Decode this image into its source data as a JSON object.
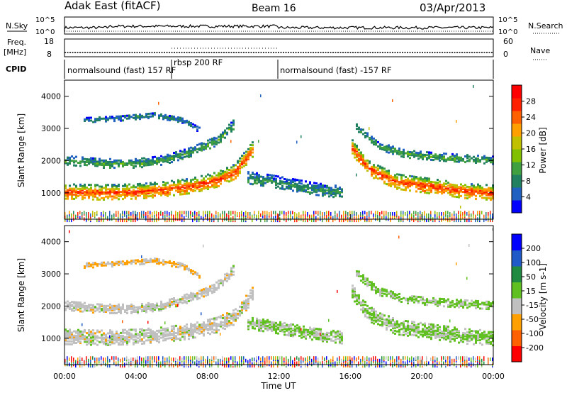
{
  "header": {
    "site_title": "Adak East (fitACF)",
    "beam": "Beam 16",
    "date": "03/Apr/2013"
  },
  "sky_panel": {
    "left_label": "N.Sky",
    "right_label": "N.Search",
    "left_ticks": [
      "10^5",
      "10^0"
    ],
    "right_ticks": [
      "10^5",
      "10^0"
    ]
  },
  "freq_panel": {
    "left_label": "Freq.",
    "left_unit": "[MHz]",
    "right_label": "Nave",
    "left_ticks": [
      "18",
      "8"
    ],
    "right_ticks": [
      "60",
      "0"
    ]
  },
  "cpid": {
    "label": "CPID",
    "segments": [
      {
        "name": "normalsound (fast) 157 RF",
        "start_hour": 0,
        "end_hour": 6
      },
      {
        "name": "rbsp 200 RF",
        "start_hour": 6,
        "end_hour": 12
      },
      {
        "name": "normalsound (fast) -157 RF",
        "start_hour": 12,
        "end_hour": 24
      }
    ]
  },
  "power_panel": {
    "ylabel": "Slant Range [km]",
    "yticks": [
      "4000",
      "3000",
      "2000",
      "1000"
    ],
    "colorbar_label": "Power [dB]",
    "colorbar_ticks": [
      "28",
      "24",
      "20",
      "16",
      "12",
      "8",
      "4"
    ],
    "colors": [
      "#0000ff",
      "#2060c0",
      "#208060",
      "#40a040",
      "#80c000",
      "#c0c000",
      "#ffa000",
      "#ff6000",
      "#ff2000",
      "#ff0000"
    ]
  },
  "velocity_panel": {
    "ylabel": "Slant Range [km]",
    "yticks": [
      "4000",
      "3000",
      "2000",
      "1000"
    ],
    "colorbar_label": "Velocity [m s-1]",
    "colorbar_ticks": [
      "200",
      "100",
      "50",
      "15",
      "-15",
      "-50",
      "-100",
      "-200"
    ],
    "colors": [
      "#0000ff",
      "#205ac8",
      "#208a40",
      "#60c020",
      "#c0c0c0",
      "#ffa000",
      "#ff6000",
      "#ff0000"
    ]
  },
  "xaxis": {
    "label": "Time UT",
    "ticks": [
      "00:00",
      "04:00",
      "08:00",
      "12:00",
      "16:00",
      "20:00",
      "00:00"
    ]
  },
  "chart_data": {
    "type": "heatmap",
    "title": "Adak East (fitACF)",
    "xlabel": "Time UT",
    "ylabel": "Slant Range [km]",
    "xlim_hours": [
      0,
      24
    ],
    "ylim_km": [
      180,
      4500
    ],
    "bands": [
      {
        "name": "main",
        "points": [
          [
            0,
            1080
          ],
          [
            2,
            1050
          ],
          [
            4,
            1080
          ],
          [
            5.5,
            1150
          ],
          [
            7,
            1250
          ],
          [
            8.5,
            1450
          ],
          [
            9.5,
            1700
          ],
          [
            10.5,
            2400
          ]
        ],
        "width": 230,
        "power": 26,
        "velocity": 0
      },
      {
        "name": "upper",
        "points": [
          [
            0,
            2050
          ],
          [
            2,
            1950
          ],
          [
            4,
            1950
          ],
          [
            5.5,
            2050
          ],
          [
            7,
            2300
          ],
          [
            8.5,
            2650
          ],
          [
            9.5,
            3200
          ]
        ],
        "width": 140,
        "power": 10,
        "velocity": 0
      },
      {
        "name": "far",
        "points": [
          [
            1,
            3300
          ],
          [
            3,
            3350
          ],
          [
            5,
            3450
          ],
          [
            6.5,
            3300
          ],
          [
            7.5,
            3000
          ]
        ],
        "width": 80,
        "power": 6,
        "velocity": -30
      },
      {
        "name": "noon",
        "points": [
          [
            10.2,
            1500
          ],
          [
            11.5,
            1400
          ],
          [
            12.5,
            1300
          ],
          [
            14,
            1150
          ],
          [
            15.5,
            1050
          ]
        ],
        "width": 180,
        "power": 8,
        "velocity": 30
      },
      {
        "name": "evening-main",
        "points": [
          [
            16,
            2500
          ],
          [
            17,
            1800
          ],
          [
            18.5,
            1400
          ],
          [
            20.5,
            1250
          ],
          [
            22.5,
            1100
          ],
          [
            24,
            1050
          ]
        ],
        "width": 240,
        "power": 26,
        "velocity": 30
      },
      {
        "name": "evening-upper",
        "points": [
          [
            16.2,
            3100
          ],
          [
            17.5,
            2500
          ],
          [
            19,
            2250
          ],
          [
            21,
            2150
          ],
          [
            24,
            2050
          ]
        ],
        "width": 120,
        "power": 10,
        "velocity": 40
      }
    ]
  }
}
